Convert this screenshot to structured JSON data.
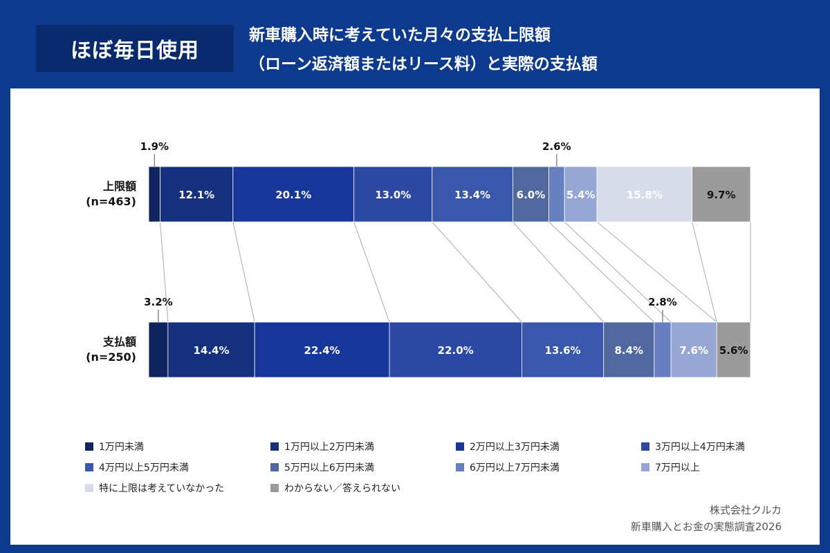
{
  "header": {
    "badge": "ほぼ毎日使用",
    "title_line1": "新車購入時に考えていた月々の支払上限額",
    "title_line2": "（ローン返済額またはリース料）と実際の支払額"
  },
  "chart_data": {
    "type": "bar",
    "orientation": "horizontal",
    "stacked": true,
    "title": "新車購入時に考えていた月々の支払上限額（ローン返済額またはリース料）と実際の支払額",
    "unit": "%",
    "xlim": [
      0,
      100
    ],
    "categories": [
      "上限額",
      "支払額"
    ],
    "category_n": [
      "(n=463)",
      "(n=250)"
    ],
    "series": [
      {
        "name": "1万円未満",
        "color": "#0f2460",
        "values": [
          1.9,
          3.2
        ]
      },
      {
        "name": "1万円以上2万円未満",
        "color": "#14307e",
        "values": [
          12.1,
          14.4
        ]
      },
      {
        "name": "2万円以上3万円未満",
        "color": "#18369a",
        "values": [
          20.1,
          22.4
        ]
      },
      {
        "name": "3万円以上4万円未満",
        "color": "#2c48a2",
        "values": [
          13.0,
          22.0
        ]
      },
      {
        "name": "4万円以上5万円未満",
        "color": "#3a58ab",
        "values": [
          13.4,
          13.6
        ]
      },
      {
        "name": "5万円以上6万円未満",
        "color": "#51689f",
        "values": [
          6.0,
          8.4
        ]
      },
      {
        "name": "6万円以上7万円未満",
        "color": "#6680bf",
        "values": [
          2.6,
          2.8
        ]
      },
      {
        "name": "7万円以上",
        "color": "#97a7d4",
        "values": [
          5.4,
          7.6
        ]
      },
      {
        "name": "特に上限は考えていなかった",
        "color": "#d6dcea",
        "values": [
          15.8,
          null
        ]
      },
      {
        "name": "わからない／答えられない",
        "color": "#9b9b9b",
        "values": [
          9.7,
          5.6
        ]
      }
    ],
    "labels": [
      [
        "1.9%",
        "12.1%",
        "20.1%",
        "13.0%",
        "13.4%",
        "6.0%",
        "2.6%",
        "5.4%",
        "15.8%",
        "9.7%"
      ],
      [
        "3.2%",
        "14.4%",
        "22.4%",
        "22.0%",
        "13.6%",
        "8.4%",
        "2.8%",
        "7.6%",
        "",
        "5.6%"
      ]
    ],
    "legend_position": "bottom"
  },
  "credits": {
    "company": "株式会社クルカ",
    "survey": "新車購入とお金の実態調査2026"
  }
}
